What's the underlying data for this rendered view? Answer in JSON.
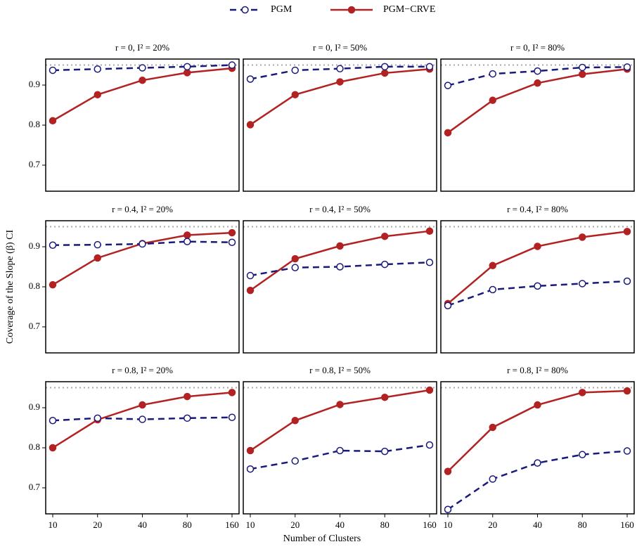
{
  "legend": [
    {
      "name": "PGM",
      "color": "#1a1a7a",
      "dash": true
    },
    {
      "name": "PGM−CRVE",
      "color": "#b22222",
      "dash": false
    }
  ],
  "categories": [
    "10",
    "20",
    "40",
    "80",
    "160"
  ],
  "ylim": [
    0.635,
    0.965
  ],
  "yticks": [
    0.7,
    0.8,
    0.9
  ],
  "hline": 0.95,
  "x_label": "Number of Clusters",
  "y_label": "Coverage of the Slope (β) CI",
  "chart_data": [
    {
      "type": "line",
      "title": "r = 0, I² = 20%",
      "series": [
        {
          "values": [
            0.937,
            0.94,
            0.943,
            0.946,
            0.95
          ]
        },
        {
          "values": [
            0.811,
            0.876,
            0.912,
            0.931,
            0.942
          ]
        }
      ]
    },
    {
      "type": "line",
      "title": "r = 0, I² = 50%",
      "series": [
        {
          "values": [
            0.915,
            0.937,
            0.941,
            0.946,
            0.946
          ]
        },
        {
          "values": [
            0.801,
            0.876,
            0.908,
            0.93,
            0.94
          ]
        }
      ]
    },
    {
      "type": "line",
      "title": "r = 0, I² = 80%",
      "series": [
        {
          "values": [
            0.899,
            0.928,
            0.935,
            0.944,
            0.945
          ]
        },
        {
          "values": [
            0.781,
            0.862,
            0.905,
            0.927,
            0.94
          ]
        }
      ]
    },
    {
      "type": "line",
      "title": "r = 0.4, I² = 20%",
      "series": [
        {
          "values": [
            0.904,
            0.905,
            0.907,
            0.913,
            0.911
          ]
        },
        {
          "values": [
            0.805,
            0.872,
            0.908,
            0.929,
            0.935
          ]
        }
      ]
    },
    {
      "type": "line",
      "title": "r = 0.4, I² = 50%",
      "series": [
        {
          "values": [
            0.828,
            0.848,
            0.85,
            0.856,
            0.861
          ]
        },
        {
          "values": [
            0.791,
            0.87,
            0.902,
            0.926,
            0.939
          ]
        }
      ]
    },
    {
      "type": "line",
      "title": "r = 0.4, I² = 80%",
      "series": [
        {
          "values": [
            0.753,
            0.793,
            0.802,
            0.808,
            0.814
          ]
        },
        {
          "values": [
            0.758,
            0.853,
            0.901,
            0.924,
            0.938
          ]
        }
      ]
    },
    {
      "type": "line",
      "title": "r = 0.8, I² = 20%",
      "series": [
        {
          "values": [
            0.868,
            0.874,
            0.871,
            0.874,
            0.876
          ]
        },
        {
          "values": [
            0.8,
            0.87,
            0.907,
            0.928,
            0.938
          ]
        }
      ]
    },
    {
      "type": "line",
      "title": "r = 0.8, I² = 50%",
      "series": [
        {
          "values": [
            0.747,
            0.767,
            0.793,
            0.791,
            0.807
          ]
        },
        {
          "values": [
            0.793,
            0.868,
            0.908,
            0.926,
            0.944
          ]
        }
      ]
    },
    {
      "type": "line",
      "title": "r = 0.8, I² = 80%",
      "series": [
        {
          "values": [
            0.646,
            0.722,
            0.762,
            0.783,
            0.792
          ]
        },
        {
          "values": [
            0.741,
            0.851,
            0.907,
            0.938,
            0.942
          ]
        }
      ]
    }
  ]
}
